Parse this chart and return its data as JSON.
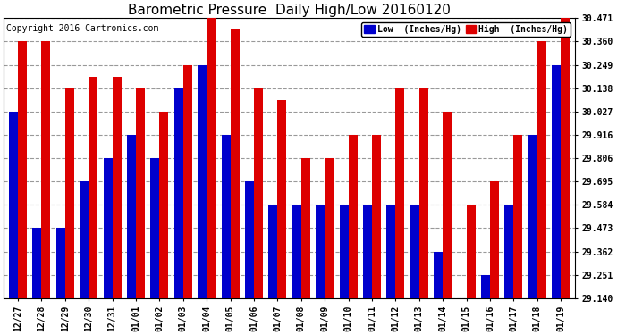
{
  "title": "Barometric Pressure  Daily High/Low 20160120",
  "copyright": "Copyright 2016 Cartronics.com",
  "legend_low": "Low  (Inches/Hg)",
  "legend_high": "High  (Inches/Hg)",
  "categories": [
    "12/27",
    "12/28",
    "12/29",
    "12/30",
    "12/31",
    "01/01",
    "01/02",
    "01/03",
    "01/04",
    "01/05",
    "01/06",
    "01/07",
    "01/08",
    "01/09",
    "01/10",
    "01/11",
    "01/12",
    "01/13",
    "01/14",
    "01/15",
    "01/16",
    "01/17",
    "01/18",
    "01/19"
  ],
  "low_values": [
    30.027,
    29.473,
    29.473,
    29.695,
    29.806,
    29.916,
    29.806,
    30.138,
    30.249,
    29.916,
    29.695,
    29.584,
    29.584,
    29.584,
    29.584,
    29.584,
    29.584,
    29.584,
    29.362,
    29.14,
    29.251,
    29.584,
    29.916,
    30.249
  ],
  "high_values": [
    30.36,
    30.36,
    30.138,
    30.194,
    30.194,
    30.138,
    30.027,
    30.249,
    30.471,
    30.416,
    30.138,
    30.083,
    29.806,
    29.806,
    29.916,
    29.916,
    30.138,
    30.138,
    30.027,
    29.584,
    29.695,
    29.916,
    30.36,
    30.471
  ],
  "ymin": 29.14,
  "ymax": 30.471,
  "yticks": [
    29.14,
    29.251,
    29.362,
    29.473,
    29.584,
    29.695,
    29.806,
    29.916,
    30.027,
    30.138,
    30.249,
    30.36,
    30.471
  ],
  "low_color": "#0000cc",
  "high_color": "#dd0000",
  "background_color": "#ffffff",
  "grid_color": "#999999",
  "title_fontsize": 11,
  "tick_fontsize": 7,
  "copyright_fontsize": 7,
  "bar_width": 0.38
}
